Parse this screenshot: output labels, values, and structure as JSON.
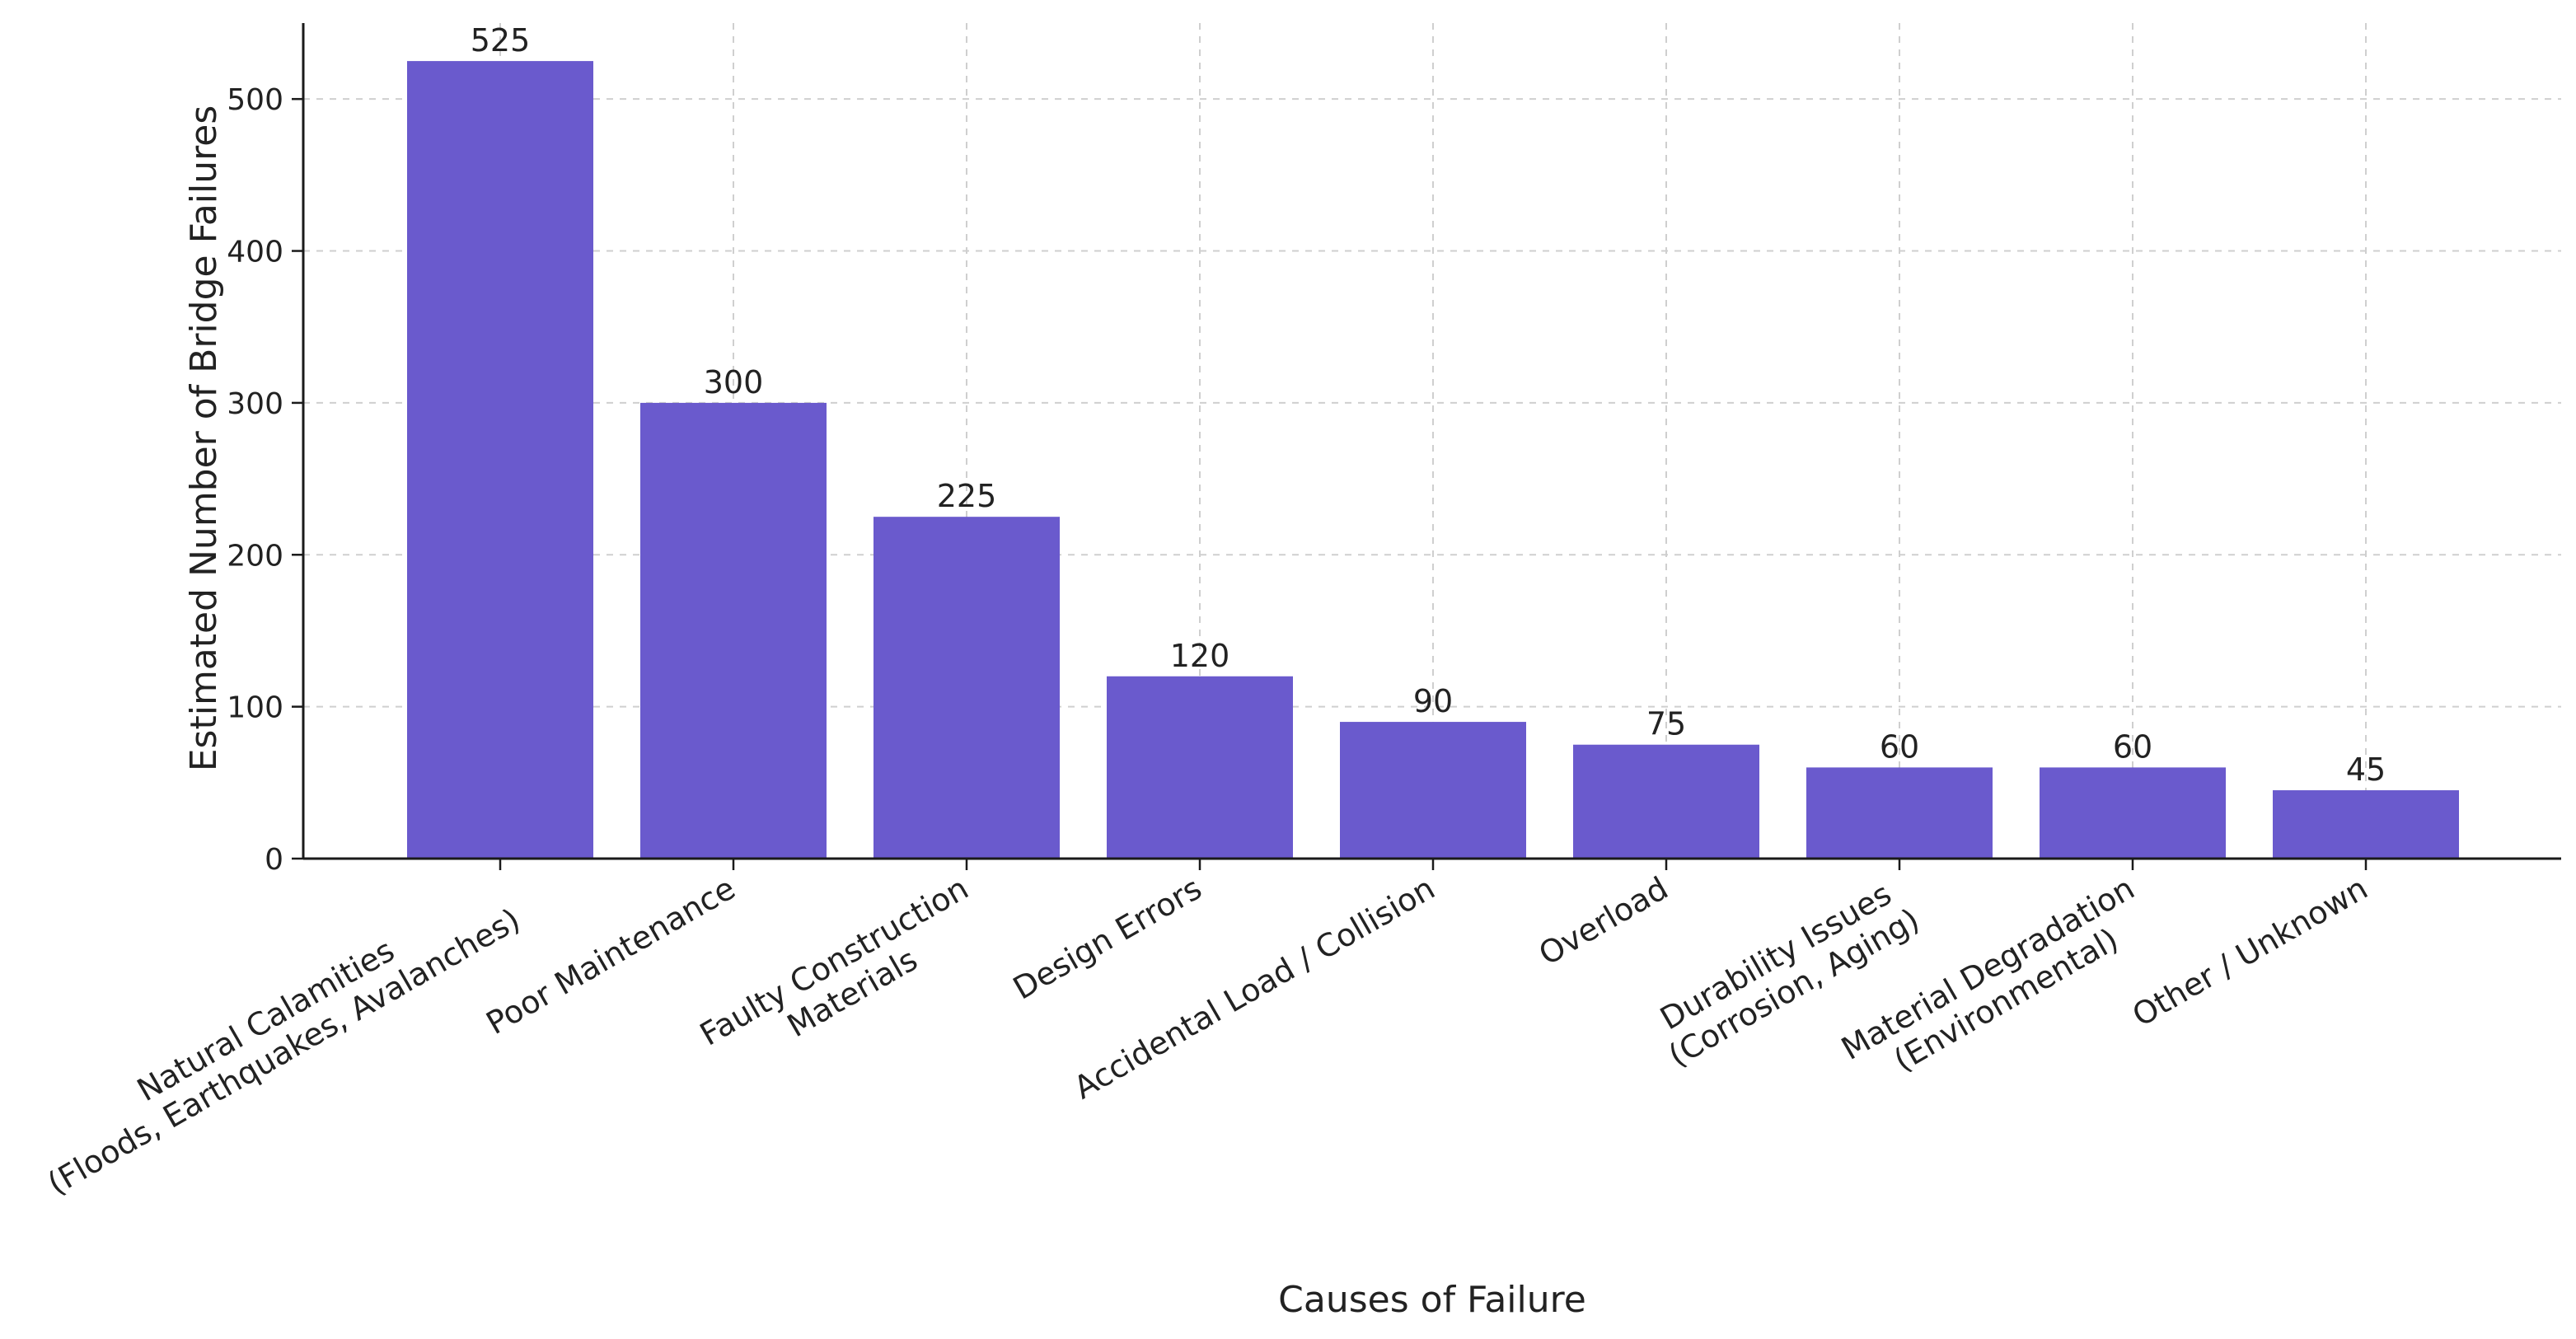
{
  "chart_data": {
    "type": "bar",
    "title": "",
    "xlabel": "Causes of Failure",
    "ylabel": "Estimated Number of Bridge Failures",
    "categories": [
      [
        "Natural Calamities",
        "(Floods, Earthquakes, Avalanches)"
      ],
      [
        "Poor Maintenance"
      ],
      [
        "Faulty Construction",
        "Materials"
      ],
      [
        "Design Errors"
      ],
      [
        "Accidental Load / Collision"
      ],
      [
        "Overload"
      ],
      [
        "Durability Issues",
        "(Corrosion, Aging)"
      ],
      [
        "Material Degradation",
        "(Environmental)"
      ],
      [
        "Other / Unknown"
      ]
    ],
    "values": [
      525,
      300,
      225,
      120,
      90,
      75,
      60,
      60,
      45
    ],
    "data_labels": [
      "525",
      "300",
      "225",
      "120",
      "90",
      "75",
      "60",
      "60",
      "45"
    ],
    "ylim": [
      0,
      550
    ],
    "yticks": [
      0,
      100,
      200,
      300,
      400,
      500
    ],
    "grid": true,
    "bar_color": "#6a5acd"
  }
}
